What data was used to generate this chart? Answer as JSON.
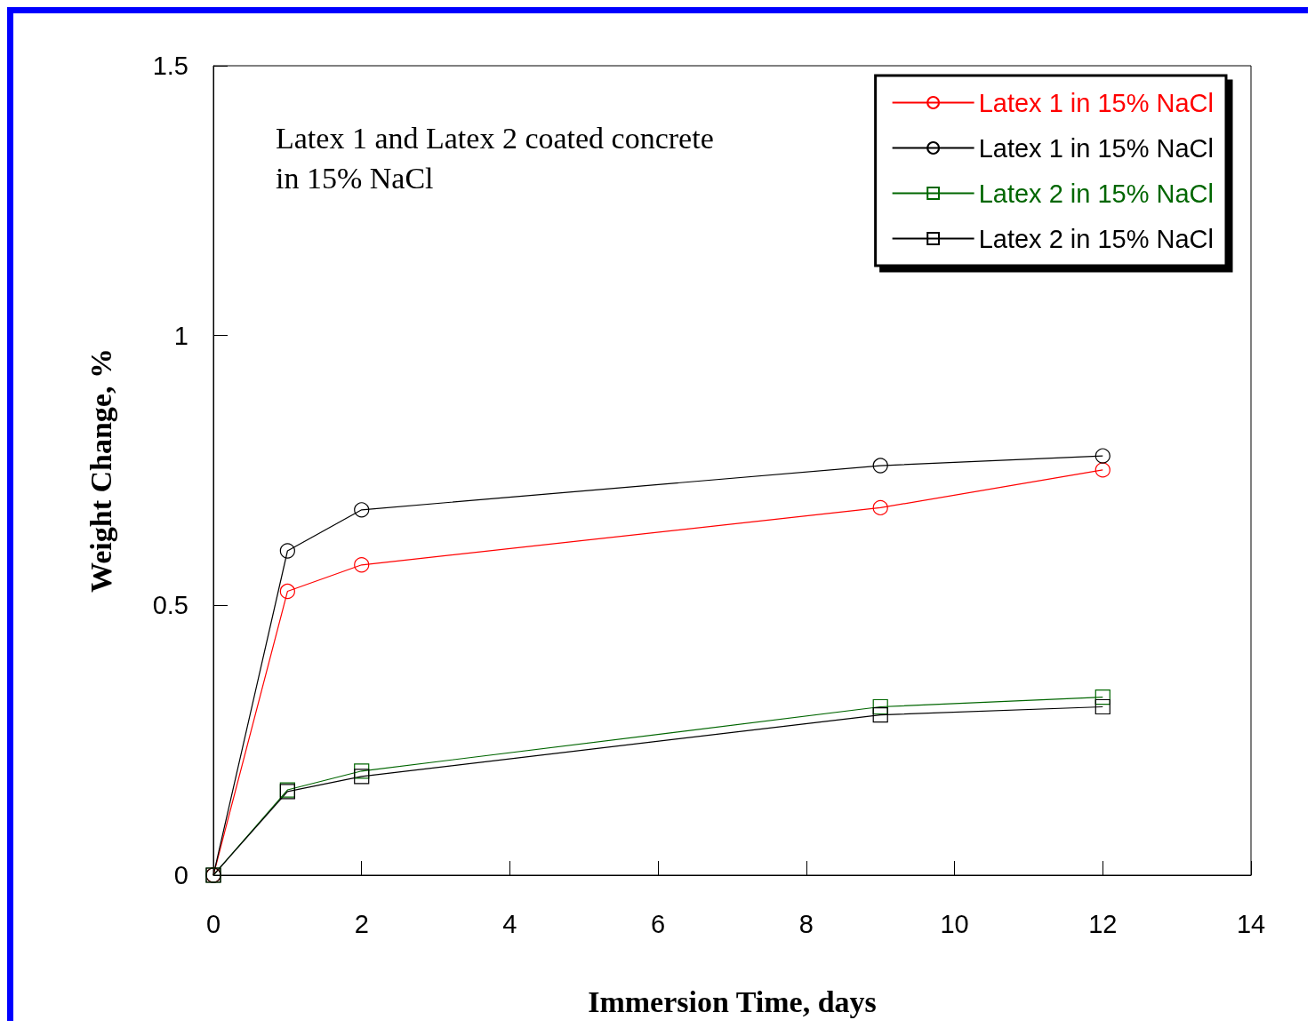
{
  "chart_data": {
    "type": "line",
    "xlabel": "Immersion Time, days",
    "ylabel": "Weight Change, %",
    "annotations": [
      "Latex 1 and Latex 2 coated concrete\nin 15% NaCl"
    ],
    "xlim": [
      0,
      14
    ],
    "xticks": [
      0,
      2,
      4,
      6,
      8,
      10,
      12,
      14
    ],
    "ylim": [
      0,
      1.5
    ],
    "yticks": [
      0,
      0.5,
      1,
      1.5
    ],
    "grid": false,
    "legend": "top right",
    "line_style": "solid",
    "x": [
      0,
      1,
      2,
      9,
      12
    ],
    "series": [
      {
        "name": "Latex 1 in 15% NaCl",
        "color": "#ff0000",
        "marker": "circle",
        "values": [
          0,
          0.526,
          0.575,
          0.681,
          0.751
        ]
      },
      {
        "name": "Latex 1 in 15% NaCl",
        "color": "#000000",
        "marker": "circle",
        "values": [
          0,
          0.601,
          0.677,
          0.759,
          0.777
        ]
      },
      {
        "name": "Latex 2 in 15% NaCl",
        "color": "#006600",
        "marker": "square",
        "values": [
          0,
          0.158,
          0.193,
          0.312,
          0.33
        ]
      },
      {
        "name": "Latex 2 in 15% NaCl",
        "color": "#000000",
        "marker": "square",
        "values": [
          0,
          0.155,
          0.183,
          0.297,
          0.312
        ]
      }
    ]
  }
}
